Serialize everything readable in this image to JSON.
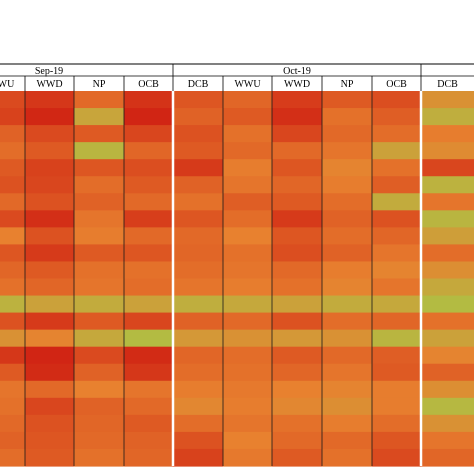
{
  "chart_data": {
    "type": "heatmap",
    "title": "",
    "month_groups": [
      {
        "label": "Sep-19",
        "columns": [
          "WU",
          "WWD",
          "NP",
          "OCB"
        ]
      },
      {
        "label": "Oct-19",
        "columns": [
          "DCB",
          "WWU",
          "WWD",
          "NP",
          "OCB"
        ]
      },
      {
        "label": "",
        "columns": [
          "DCB"
        ]
      }
    ],
    "color_scale": {
      "low": "#9fd24a",
      "mid": "#e8812f",
      "high": "#cf1f12"
    },
    "value_range": [
      0,
      1
    ],
    "values": [
      [
        0.78,
        0.88,
        0.62,
        0.9,
        0.72,
        0.64,
        0.85,
        0.7,
        0.76,
        0.4
      ],
      [
        0.82,
        0.96,
        0.28,
        0.97,
        0.66,
        0.7,
        0.92,
        0.58,
        0.68,
        0.22
      ],
      [
        0.66,
        0.78,
        0.7,
        0.8,
        0.74,
        0.58,
        0.8,
        0.62,
        0.6,
        0.52
      ],
      [
        0.6,
        0.7,
        0.18,
        0.64,
        0.7,
        0.62,
        0.62,
        0.56,
        0.3,
        0.44
      ],
      [
        0.7,
        0.82,
        0.72,
        0.76,
        0.86,
        0.52,
        0.72,
        0.48,
        0.58,
        0.8
      ],
      [
        0.74,
        0.8,
        0.6,
        0.7,
        0.66,
        0.56,
        0.64,
        0.52,
        0.68,
        0.2
      ],
      [
        0.62,
        0.74,
        0.66,
        0.62,
        0.58,
        0.68,
        0.7,
        0.6,
        0.24,
        0.56
      ],
      [
        0.78,
        0.92,
        0.56,
        0.84,
        0.72,
        0.6,
        0.86,
        0.66,
        0.74,
        0.18
      ],
      [
        0.5,
        0.74,
        0.52,
        0.62,
        0.62,
        0.5,
        0.72,
        0.6,
        0.64,
        0.32
      ],
      [
        0.72,
        0.86,
        0.7,
        0.72,
        0.64,
        0.58,
        0.76,
        0.66,
        0.56,
        0.6
      ],
      [
        0.64,
        0.7,
        0.58,
        0.58,
        0.6,
        0.56,
        0.62,
        0.52,
        0.48,
        0.42
      ],
      [
        0.58,
        0.64,
        0.56,
        0.6,
        0.56,
        0.52,
        0.58,
        0.48,
        0.56,
        0.26
      ],
      [
        0.2,
        0.3,
        0.24,
        0.3,
        0.22,
        0.26,
        0.3,
        0.24,
        0.26,
        0.14
      ],
      [
        0.74,
        0.86,
        0.7,
        0.8,
        0.66,
        0.62,
        0.74,
        0.6,
        0.64,
        0.58
      ],
      [
        0.4,
        0.48,
        0.26,
        0.14,
        0.36,
        0.4,
        0.36,
        0.4,
        0.18,
        0.3
      ],
      [
        0.88,
        0.97,
        0.78,
        0.94,
        0.64,
        0.6,
        0.7,
        0.62,
        0.68,
        0.48
      ],
      [
        0.7,
        0.94,
        0.66,
        0.88,
        0.6,
        0.58,
        0.64,
        0.56,
        0.7,
        0.66
      ],
      [
        0.56,
        0.62,
        0.5,
        0.56,
        0.52,
        0.54,
        0.5,
        0.48,
        0.52,
        0.42
      ],
      [
        0.58,
        0.8,
        0.66,
        0.62,
        0.46,
        0.52,
        0.46,
        0.42,
        0.52,
        0.16
      ],
      [
        0.62,
        0.74,
        0.64,
        0.7,
        0.6,
        0.56,
        0.58,
        0.52,
        0.6,
        0.4
      ],
      [
        0.66,
        0.72,
        0.62,
        0.66,
        0.74,
        0.5,
        0.62,
        0.62,
        0.72,
        0.56
      ],
      [
        0.6,
        0.7,
        0.58,
        0.64,
        0.82,
        0.54,
        0.7,
        0.58,
        0.78,
        0.64
      ]
    ]
  }
}
